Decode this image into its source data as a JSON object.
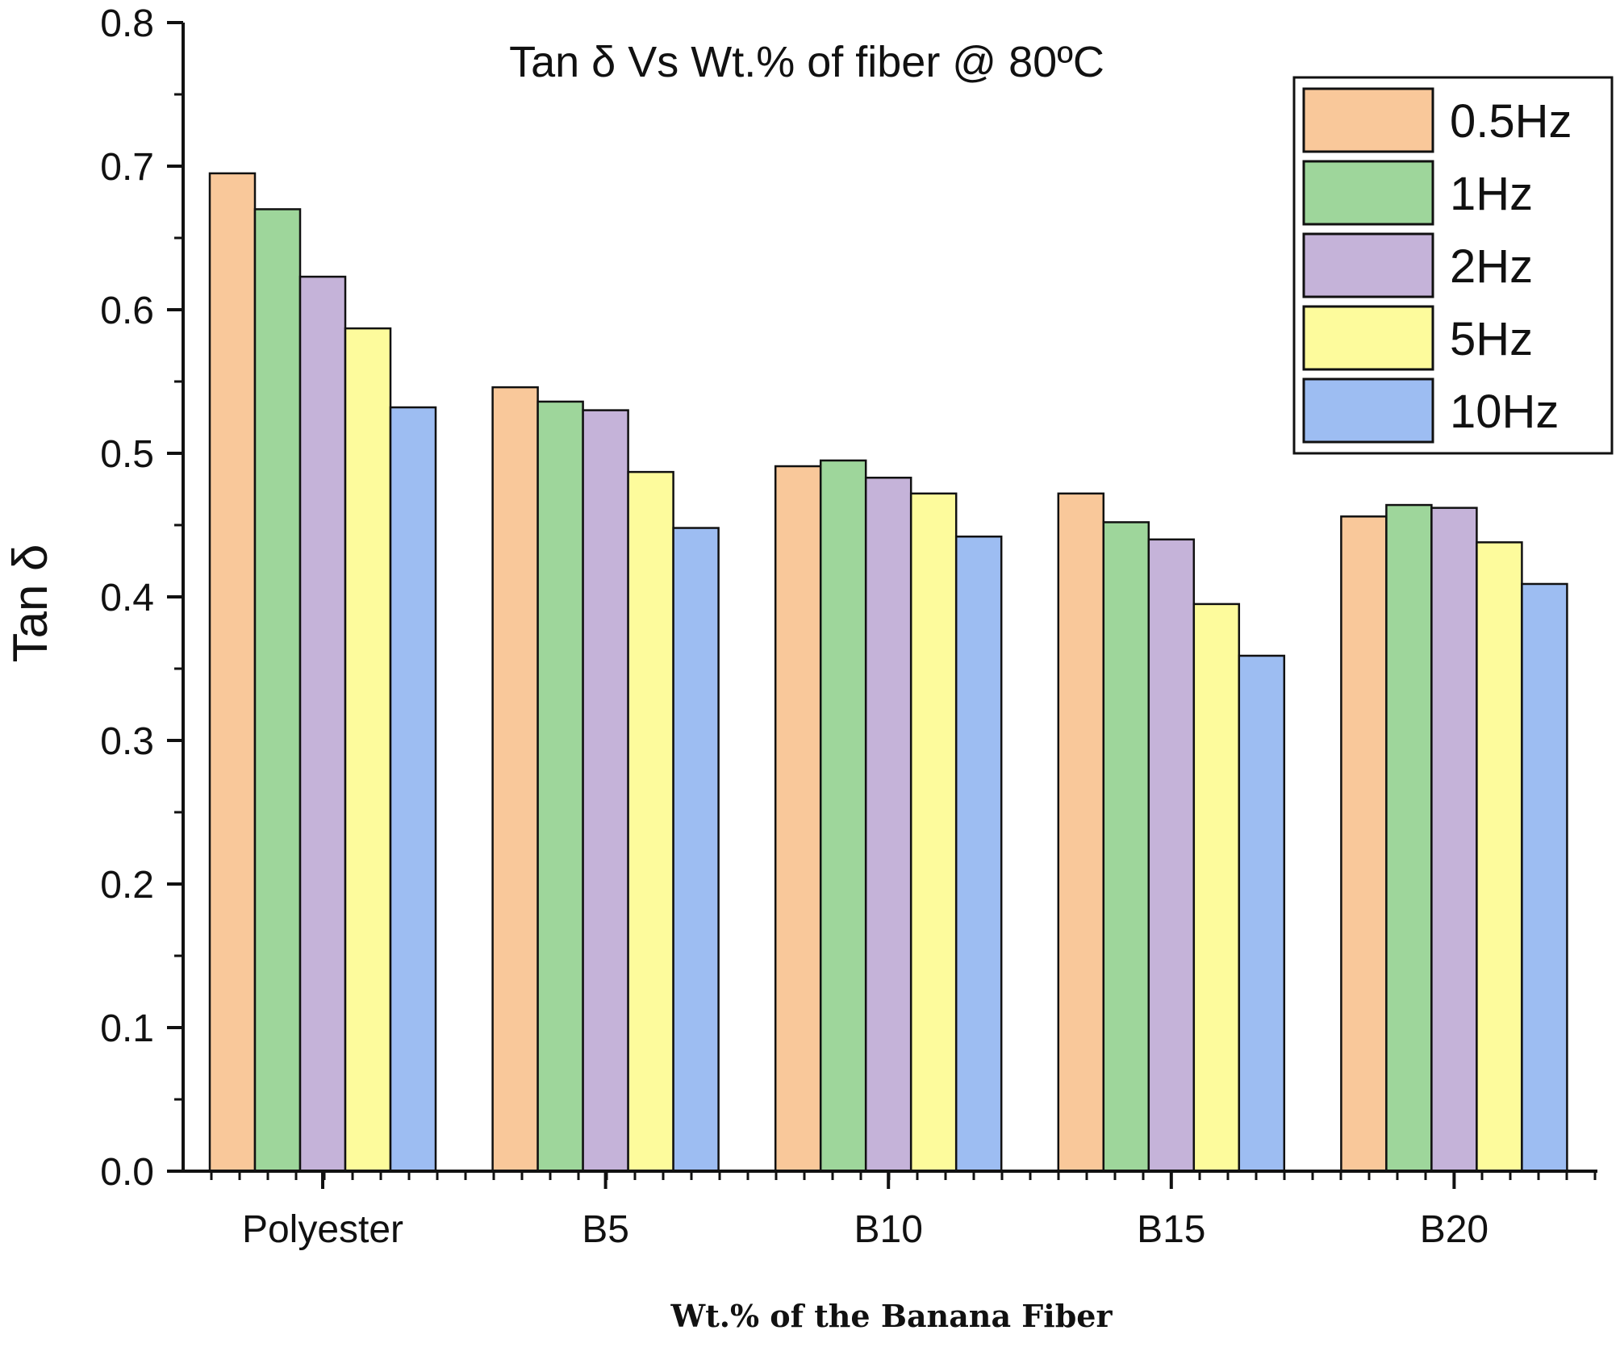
{
  "chart_data": {
    "type": "bar",
    "title": "Tan δ Vs Wt.% of fiber @ 80ºC",
    "xlabel": "Wt.% of the Banana Fiber",
    "ylabel": "Tan δ",
    "categories": [
      "Polyester",
      "B5",
      "B10",
      "B15",
      "B20"
    ],
    "ylim": [
      0,
      0.8
    ],
    "yticks": [
      "0.0",
      "0.1",
      "0.2",
      "0.3",
      "0.4",
      "0.5",
      "0.6",
      "0.7",
      "0.8"
    ],
    "series": [
      {
        "name": "0.5Hz",
        "color": "#f9c89a",
        "values": [
          0.695,
          0.546,
          0.491,
          0.472,
          0.456
        ]
      },
      {
        "name": "1Hz",
        "color": "#9ed69b",
        "values": [
          0.67,
          0.536,
          0.495,
          0.452,
          0.464
        ]
      },
      {
        "name": "2Hz",
        "color": "#c5b3d9",
        "values": [
          0.623,
          0.53,
          0.483,
          0.44,
          0.462
        ]
      },
      {
        "name": "5Hz",
        "color": "#fdfb9c",
        "values": [
          0.587,
          0.487,
          0.472,
          0.395,
          0.438
        ]
      },
      {
        "name": "10Hz",
        "color": "#9dbdf2",
        "values": [
          0.532,
          0.448,
          0.442,
          0.359,
          0.409
        ]
      }
    ],
    "grid": false,
    "legend_position": "top-right"
  }
}
